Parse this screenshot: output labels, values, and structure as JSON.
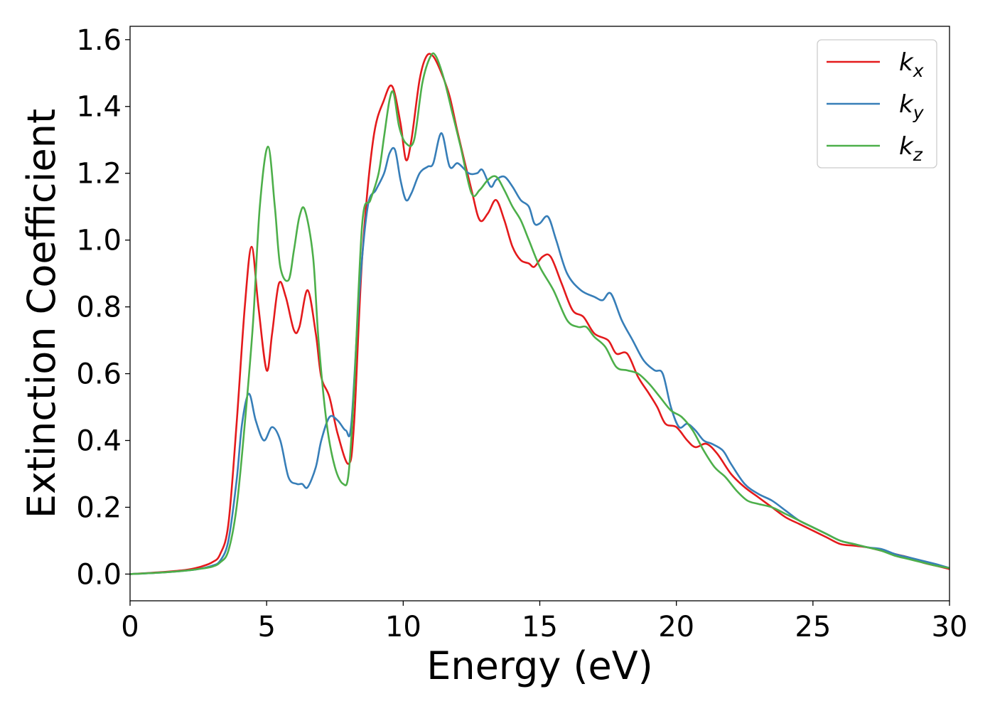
{
  "chart_data": {
    "type": "line",
    "title": "",
    "xlabel": "Energy (eV)",
    "ylabel": "Extinction Coefficient",
    "xlim": [
      0,
      30
    ],
    "ylim": [
      -0.08,
      1.64
    ],
    "xticks": [
      0,
      5,
      10,
      15,
      20,
      25,
      30
    ],
    "yticks": [
      0.0,
      0.2,
      0.4,
      0.6,
      0.8,
      1.0,
      1.2,
      1.4,
      1.6
    ],
    "xtick_labels": [
      "0",
      "5",
      "10",
      "15",
      "20",
      "25",
      "30"
    ],
    "ytick_labels": [
      "0.0",
      "0.2",
      "0.4",
      "0.6",
      "0.8",
      "1.0",
      "1.2",
      "1.4",
      "1.6"
    ],
    "grid": false,
    "legend_position": "top-right",
    "series": [
      {
        "name": "k",
        "subscript": "x",
        "color": "#e41a1c",
        "x": [
          0,
          1,
          2,
          2.5,
          3,
          3.3,
          3.6,
          3.9,
          4.2,
          4.45,
          4.7,
          5.0,
          5.2,
          5.45,
          5.7,
          6.0,
          6.2,
          6.5,
          6.8,
          7.0,
          7.3,
          7.6,
          8.0,
          8.2,
          8.5,
          8.9,
          9.3,
          9.6,
          9.9,
          10.1,
          10.3,
          10.6,
          10.85,
          11.1,
          11.4,
          11.7,
          12.0,
          12.5,
          12.8,
          13.1,
          13.4,
          13.7,
          14.0,
          14.3,
          14.6,
          14.8,
          15.1,
          15.4,
          15.8,
          16.2,
          16.6,
          17.0,
          17.5,
          17.8,
          18.2,
          18.6,
          19.0,
          19.3,
          19.6,
          20.0,
          20.4,
          20.7,
          21.1,
          21.5,
          22.0,
          22.5,
          23.0,
          23.5,
          24.0,
          24.5,
          25.0,
          25.5,
          26.0,
          26.5,
          27.0,
          27.5,
          28.0,
          28.5,
          29.0,
          29.5,
          30.0
        ],
        "values": [
          0.0,
          0.005,
          0.012,
          0.02,
          0.035,
          0.06,
          0.15,
          0.45,
          0.8,
          0.98,
          0.8,
          0.61,
          0.72,
          0.87,
          0.83,
          0.73,
          0.74,
          0.85,
          0.72,
          0.59,
          0.53,
          0.42,
          0.33,
          0.45,
          0.95,
          1.3,
          1.42,
          1.46,
          1.35,
          1.24,
          1.3,
          1.48,
          1.55,
          1.55,
          1.5,
          1.43,
          1.32,
          1.15,
          1.06,
          1.08,
          1.12,
          1.06,
          0.98,
          0.94,
          0.93,
          0.92,
          0.95,
          0.95,
          0.87,
          0.79,
          0.77,
          0.72,
          0.7,
          0.66,
          0.66,
          0.59,
          0.54,
          0.5,
          0.45,
          0.44,
          0.4,
          0.38,
          0.39,
          0.36,
          0.3,
          0.26,
          0.23,
          0.2,
          0.17,
          0.15,
          0.13,
          0.11,
          0.09,
          0.085,
          0.08,
          0.07,
          0.06,
          0.05,
          0.035,
          0.025,
          0.015
        ]
      },
      {
        "name": "k",
        "subscript": "y",
        "color": "#377eb8",
        "x": [
          0,
          1,
          2,
          2.5,
          3,
          3.3,
          3.6,
          3.9,
          4.1,
          4.35,
          4.6,
          4.9,
          5.2,
          5.5,
          5.8,
          6.1,
          6.3,
          6.5,
          6.8,
          7.0,
          7.3,
          7.6,
          7.9,
          8.1,
          8.4,
          8.7,
          9.0,
          9.3,
          9.5,
          9.7,
          9.9,
          10.1,
          10.3,
          10.6,
          10.9,
          11.1,
          11.4,
          11.7,
          12.0,
          12.4,
          12.7,
          12.9,
          13.2,
          13.4,
          13.7,
          14.0,
          14.3,
          14.6,
          14.8,
          15.0,
          15.3,
          15.6,
          16.0,
          16.5,
          17.0,
          17.3,
          17.6,
          18.0,
          18.4,
          18.8,
          19.2,
          19.5,
          19.8,
          20.1,
          20.4,
          20.7,
          21.0,
          21.3,
          21.7,
          22.0,
          22.5,
          23.0,
          23.5,
          24.0,
          24.5,
          25.0,
          25.5,
          26.0,
          26.5,
          27.0,
          27.5,
          28.0,
          28.5,
          29.0,
          29.5,
          30.0
        ],
        "values": [
          0.0,
          0.004,
          0.01,
          0.015,
          0.025,
          0.04,
          0.1,
          0.28,
          0.45,
          0.54,
          0.46,
          0.4,
          0.44,
          0.4,
          0.29,
          0.27,
          0.27,
          0.26,
          0.32,
          0.4,
          0.47,
          0.46,
          0.43,
          0.45,
          0.85,
          1.1,
          1.15,
          1.2,
          1.26,
          1.27,
          1.18,
          1.12,
          1.14,
          1.2,
          1.22,
          1.23,
          1.32,
          1.22,
          1.23,
          1.2,
          1.2,
          1.21,
          1.16,
          1.18,
          1.19,
          1.16,
          1.12,
          1.1,
          1.05,
          1.05,
          1.07,
          1.0,
          0.9,
          0.85,
          0.83,
          0.82,
          0.84,
          0.76,
          0.7,
          0.64,
          0.61,
          0.6,
          0.5,
          0.44,
          0.45,
          0.43,
          0.4,
          0.39,
          0.37,
          0.33,
          0.27,
          0.24,
          0.22,
          0.19,
          0.16,
          0.14,
          0.12,
          0.1,
          0.09,
          0.08,
          0.075,
          0.06,
          0.05,
          0.04,
          0.03,
          0.018
        ]
      },
      {
        "name": "k",
        "subscript": "z",
        "color": "#4daf4a",
        "x": [
          0,
          1,
          2,
          2.5,
          3,
          3.3,
          3.6,
          3.9,
          4.2,
          4.5,
          4.75,
          5.05,
          5.3,
          5.5,
          5.8,
          6.0,
          6.2,
          6.4,
          6.7,
          6.9,
          7.2,
          7.5,
          7.8,
          8.0,
          8.2,
          8.5,
          8.8,
          9.1,
          9.3,
          9.5,
          9.65,
          9.85,
          10.1,
          10.4,
          10.7,
          11.0,
          11.2,
          11.5,
          11.8,
          12.1,
          12.5,
          12.8,
          13.1,
          13.4,
          13.7,
          14.0,
          14.3,
          14.6,
          15.0,
          15.5,
          16.0,
          16.4,
          16.7,
          17.0,
          17.4,
          17.8,
          18.2,
          18.6,
          19.0,
          19.4,
          19.8,
          20.2,
          20.6,
          21.0,
          21.4,
          21.8,
          22.2,
          22.6,
          23.0,
          23.5,
          24.0,
          24.5,
          25.0,
          25.5,
          26.0,
          26.5,
          27.0,
          27.5,
          28.0,
          28.5,
          29.0,
          29.5,
          30.0
        ],
        "values": [
          0.0,
          0.004,
          0.01,
          0.015,
          0.022,
          0.035,
          0.07,
          0.2,
          0.45,
          0.75,
          1.1,
          1.28,
          1.1,
          0.92,
          0.88,
          0.97,
          1.07,
          1.09,
          0.95,
          0.7,
          0.45,
          0.32,
          0.27,
          0.3,
          0.55,
          1.05,
          1.12,
          1.2,
          1.31,
          1.42,
          1.44,
          1.34,
          1.29,
          1.3,
          1.47,
          1.55,
          1.55,
          1.48,
          1.38,
          1.28,
          1.14,
          1.15,
          1.18,
          1.19,
          1.15,
          1.1,
          1.06,
          1.0,
          0.92,
          0.85,
          0.76,
          0.74,
          0.74,
          0.71,
          0.68,
          0.62,
          0.61,
          0.6,
          0.57,
          0.53,
          0.49,
          0.47,
          0.43,
          0.37,
          0.32,
          0.29,
          0.25,
          0.22,
          0.21,
          0.2,
          0.18,
          0.16,
          0.14,
          0.12,
          0.1,
          0.09,
          0.08,
          0.07,
          0.055,
          0.045,
          0.035,
          0.025,
          0.018
        ]
      }
    ]
  }
}
